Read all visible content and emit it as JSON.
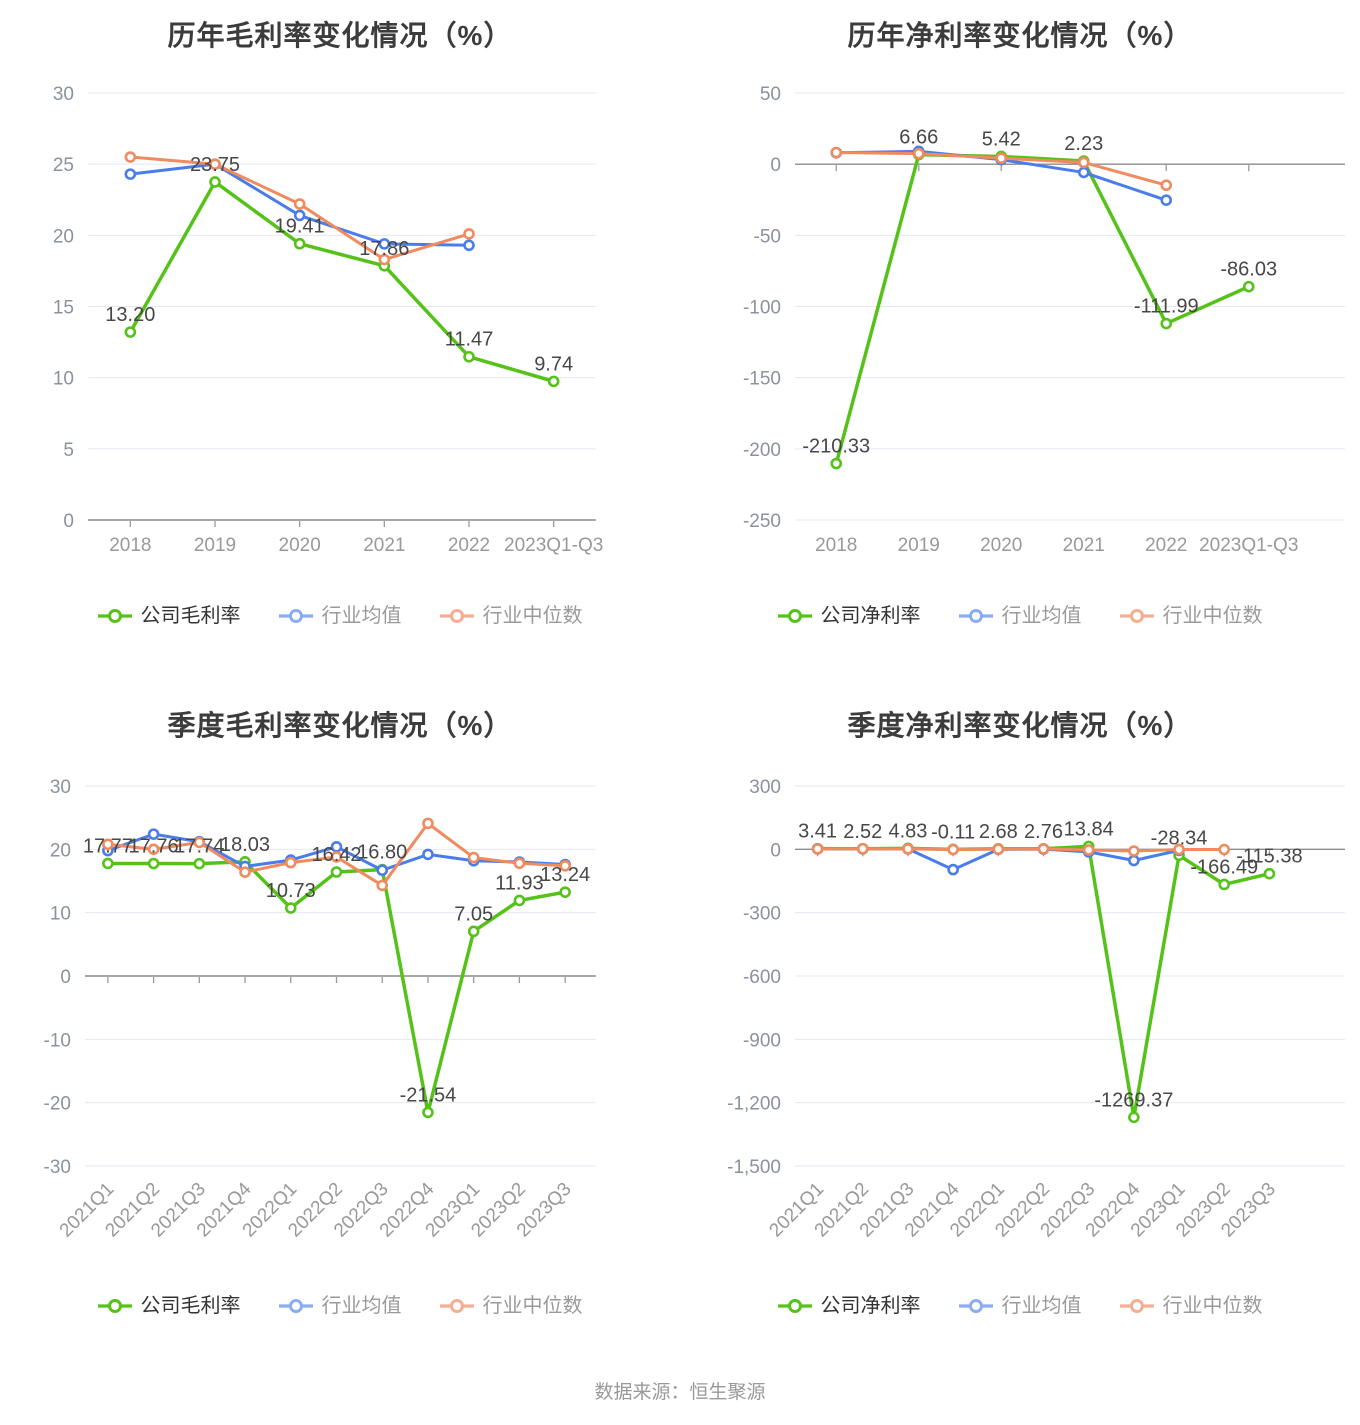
{
  "footer": {
    "source": "数据来源：恒生聚源"
  },
  "chart_data": [
    {
      "id": "annual-gross-margin",
      "type": "line",
      "title": "历年毛利率变化情况（%）",
      "categories": [
        "2018",
        "2019",
        "2020",
        "2021",
        "2022",
        "2023Q1-Q3"
      ],
      "yticks": [
        30,
        25,
        20,
        15,
        10,
        5,
        0
      ],
      "ylim": [
        0,
        30
      ],
      "x_label_rotate": 0,
      "grid": true,
      "legend_position": "bottom",
      "series": [
        {
          "name": "公司毛利率",
          "color": "#54c218",
          "legend_color": "#54c218",
          "emphasized": true,
          "values": [
            13.2,
            23.75,
            19.41,
            17.86,
            11.47,
            9.74
          ],
          "labels": [
            "13.20",
            "23.75",
            "19.41",
            "17.86",
            "11.47",
            "9.74"
          ]
        },
        {
          "name": "行业均值",
          "color": "#4a7de9",
          "legend_color": "#8aacf2",
          "values": [
            24.3,
            25.0,
            21.4,
            19.4,
            19.3
          ]
        },
        {
          "name": "行业中位数",
          "color": "#f08a5f",
          "legend_color": "#f6ae93",
          "values": [
            25.5,
            25.0,
            22.2,
            18.3,
            20.1
          ]
        }
      ]
    },
    {
      "id": "annual-net-margin",
      "type": "line",
      "title": "历年净利率变化情况（%）",
      "categories": [
        "2018",
        "2019",
        "2020",
        "2021",
        "2022",
        "2023Q1-Q3"
      ],
      "yticks": [
        50,
        0,
        -50,
        -100,
        -150,
        -200,
        -250
      ],
      "ylim": [
        -250,
        50
      ],
      "x_label_rotate": 0,
      "grid": true,
      "legend_position": "bottom",
      "series": [
        {
          "name": "公司净利率",
          "color": "#54c218",
          "legend_color": "#54c218",
          "emphasized": true,
          "values": [
            -210.33,
            6.66,
            5.42,
            2.23,
            -111.99,
            -86.03
          ],
          "labels": [
            "-210.33",
            "6.66",
            "5.42",
            "2.23",
            "-111.99",
            "-86.03"
          ]
        },
        {
          "name": "行业均值",
          "color": "#4a7de9",
          "legend_color": "#8aacf2",
          "values": [
            8,
            9,
            3.2,
            -5.8,
            -25.3
          ]
        },
        {
          "name": "行业中位数",
          "color": "#f08a5f",
          "legend_color": "#f6ae93",
          "values": [
            8.2,
            7.4,
            4.2,
            1.2,
            -14.8
          ]
        }
      ]
    },
    {
      "id": "quarterly-gross-margin",
      "type": "line",
      "title": "季度毛利率变化情况（%）",
      "categories": [
        "2021Q1",
        "2021Q2",
        "2021Q3",
        "2021Q4",
        "2022Q1",
        "2022Q2",
        "2022Q3",
        "2022Q4",
        "2023Q1",
        "2023Q2",
        "2023Q3"
      ],
      "yticks": [
        30,
        20,
        10,
        0,
        -10,
        -20,
        -30
      ],
      "ylim": [
        -30,
        30
      ],
      "x_label_rotate": 45,
      "grid": true,
      "legend_position": "bottom",
      "series": [
        {
          "name": "公司毛利率",
          "color": "#54c218",
          "legend_color": "#54c218",
          "emphasized": true,
          "values": [
            17.77,
            17.76,
            17.74,
            18.03,
            10.73,
            16.42,
            16.8,
            -21.54,
            7.05,
            11.93,
            13.24
          ],
          "labels": [
            "17.77",
            "17.76",
            "17.74",
            "18.03",
            "10.73",
            "16.42",
            "16.80",
            "-21.54",
            "7.05",
            "11.93",
            "13.24"
          ]
        },
        {
          "name": "行业均值",
          "color": "#4a7de9",
          "legend_color": "#8aacf2",
          "values": [
            19.8,
            22.4,
            21.2,
            17.3,
            18.3,
            20.4,
            16.7,
            19.2,
            18.2,
            18.0,
            17.6
          ]
        },
        {
          "name": "行业中位数",
          "color": "#f08a5f",
          "legend_color": "#f6ae93",
          "values": [
            20.8,
            20.0,
            21.1,
            16.4,
            17.9,
            18.8,
            14.3,
            24.1,
            18.7,
            17.8,
            17.4
          ]
        }
      ]
    },
    {
      "id": "quarterly-net-margin",
      "type": "line",
      "title": "季度净利率变化情况（%）",
      "categories": [
        "2021Q1",
        "2021Q2",
        "2021Q3",
        "2021Q4",
        "2022Q1",
        "2022Q2",
        "2022Q3",
        "2022Q4",
        "2023Q1",
        "2023Q2",
        "2023Q3"
      ],
      "yticks": [
        300,
        0,
        -300,
        -600,
        -900,
        -1200,
        -1500
      ],
      "ylim": [
        -1500,
        300
      ],
      "x_label_rotate": 45,
      "grid": true,
      "legend_position": "bottom",
      "series": [
        {
          "name": "公司净利率",
          "color": "#54c218",
          "legend_color": "#54c218",
          "emphasized": true,
          "values": [
            3.41,
            2.52,
            4.83,
            -0.11,
            2.68,
            2.76,
            13.84,
            -1269.37,
            -28.34,
            -166.49,
            -115.38
          ],
          "labels": [
            "3.41",
            "2.52",
            "4.83",
            "-0.11",
            "2.68",
            "2.76",
            "13.84",
            "-1269.37",
            "-28.34",
            "-166.49",
            "-115.38"
          ]
        },
        {
          "name": "行业均值",
          "color": "#4a7de9",
          "legend_color": "#8aacf2",
          "values": [
            2,
            2,
            2,
            -96,
            0,
            1,
            -12,
            -53,
            -5
          ]
        },
        {
          "name": "行业中位数",
          "color": "#f08a5f",
          "legend_color": "#f6ae93",
          "values": [
            2,
            3,
            2,
            -1,
            1,
            2,
            -3,
            -8,
            -1,
            -1
          ]
        }
      ]
    }
  ]
}
